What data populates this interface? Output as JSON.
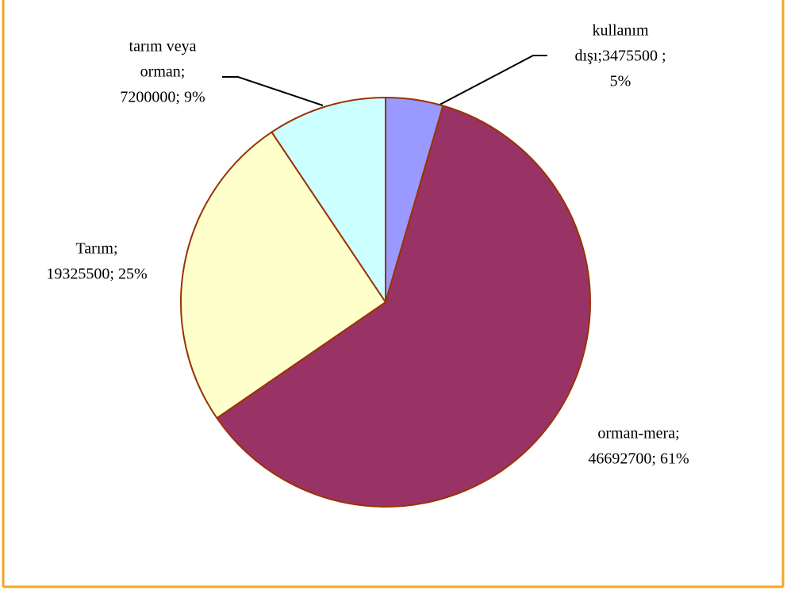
{
  "chart_data": {
    "type": "pie",
    "categories": [
      "kullanım dışı",
      "orman-mera",
      "Tarım",
      "tarım veya orman"
    ],
    "values": [
      3475500,
      46692700,
      19325500,
      7200000
    ],
    "value_labels": [
      [
        "kullanım",
        "dışı;3475500 ;",
        "5%"
      ],
      [
        "orman-mera;",
        "46692700; 61%"
      ],
      [
        "Tarım;",
        "19325500; 25%"
      ],
      [
        "tarım veya",
        "orman;",
        "7200000; 9%"
      ]
    ],
    "colors": [
      "#9999ff",
      "#993366",
      "#ffffcc",
      "#ccffff"
    ],
    "start_angle": 0,
    "direction": "clockwise"
  }
}
